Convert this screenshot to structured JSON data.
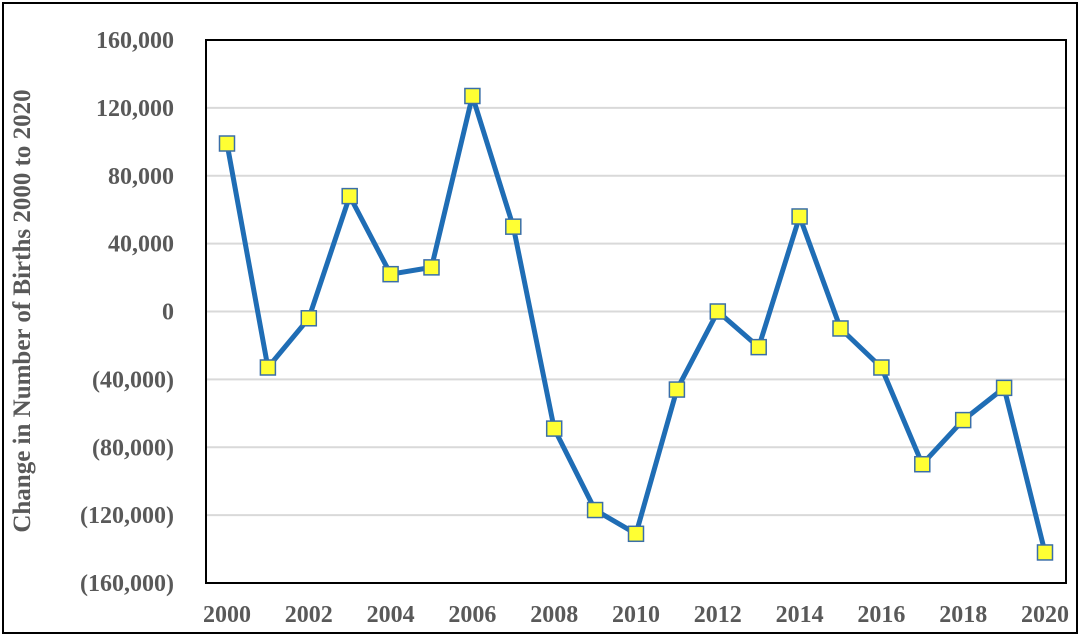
{
  "chart_data": {
    "type": "line",
    "title": "",
    "xlabel": "",
    "ylabel": "Change in Number of Births 2000 to 2020",
    "x": [
      2000,
      2001,
      2002,
      2003,
      2004,
      2005,
      2006,
      2007,
      2008,
      2009,
      2010,
      2011,
      2012,
      2013,
      2014,
      2015,
      2016,
      2017,
      2018,
      2019,
      2020
    ],
    "series": [
      {
        "values": [
          99000,
          -33000,
          -4000,
          68000,
          22000,
          26000,
          127000,
          50000,
          -69000,
          -117000,
          -131000,
          -46000,
          0,
          -21000,
          56000,
          -10000,
          -33000,
          -90000,
          -64000,
          -45000,
          -142000
        ]
      }
    ],
    "xticks": [
      "2000",
      "2002",
      "2004",
      "2006",
      "2008",
      "2010",
      "2012",
      "2014",
      "2016",
      "2018",
      "2020"
    ],
    "yticks": [
      {
        "v": 160000,
        "label": "160,000"
      },
      {
        "v": 120000,
        "label": "120,000"
      },
      {
        "v": 80000,
        "label": "80,000"
      },
      {
        "v": 40000,
        "label": "40,000"
      },
      {
        "v": 0,
        "label": "0"
      },
      {
        "v": -40000,
        "label": "(40,000)"
      },
      {
        "v": -80000,
        "label": "(80,000)"
      },
      {
        "v": -120000,
        "label": "(120,000)"
      },
      {
        "v": -160000,
        "label": "(160,000)"
      }
    ],
    "ylim": [
      -160000,
      160000
    ],
    "xlim": [
      2000,
      2020
    ],
    "grid": true,
    "legend": "none",
    "colors": {
      "line": "#1F6DB5",
      "marker_fill": "#FFFF33",
      "marker_stroke": "#3A6EA8",
      "grid": "#D9D9D9",
      "text": "#595959"
    }
  }
}
